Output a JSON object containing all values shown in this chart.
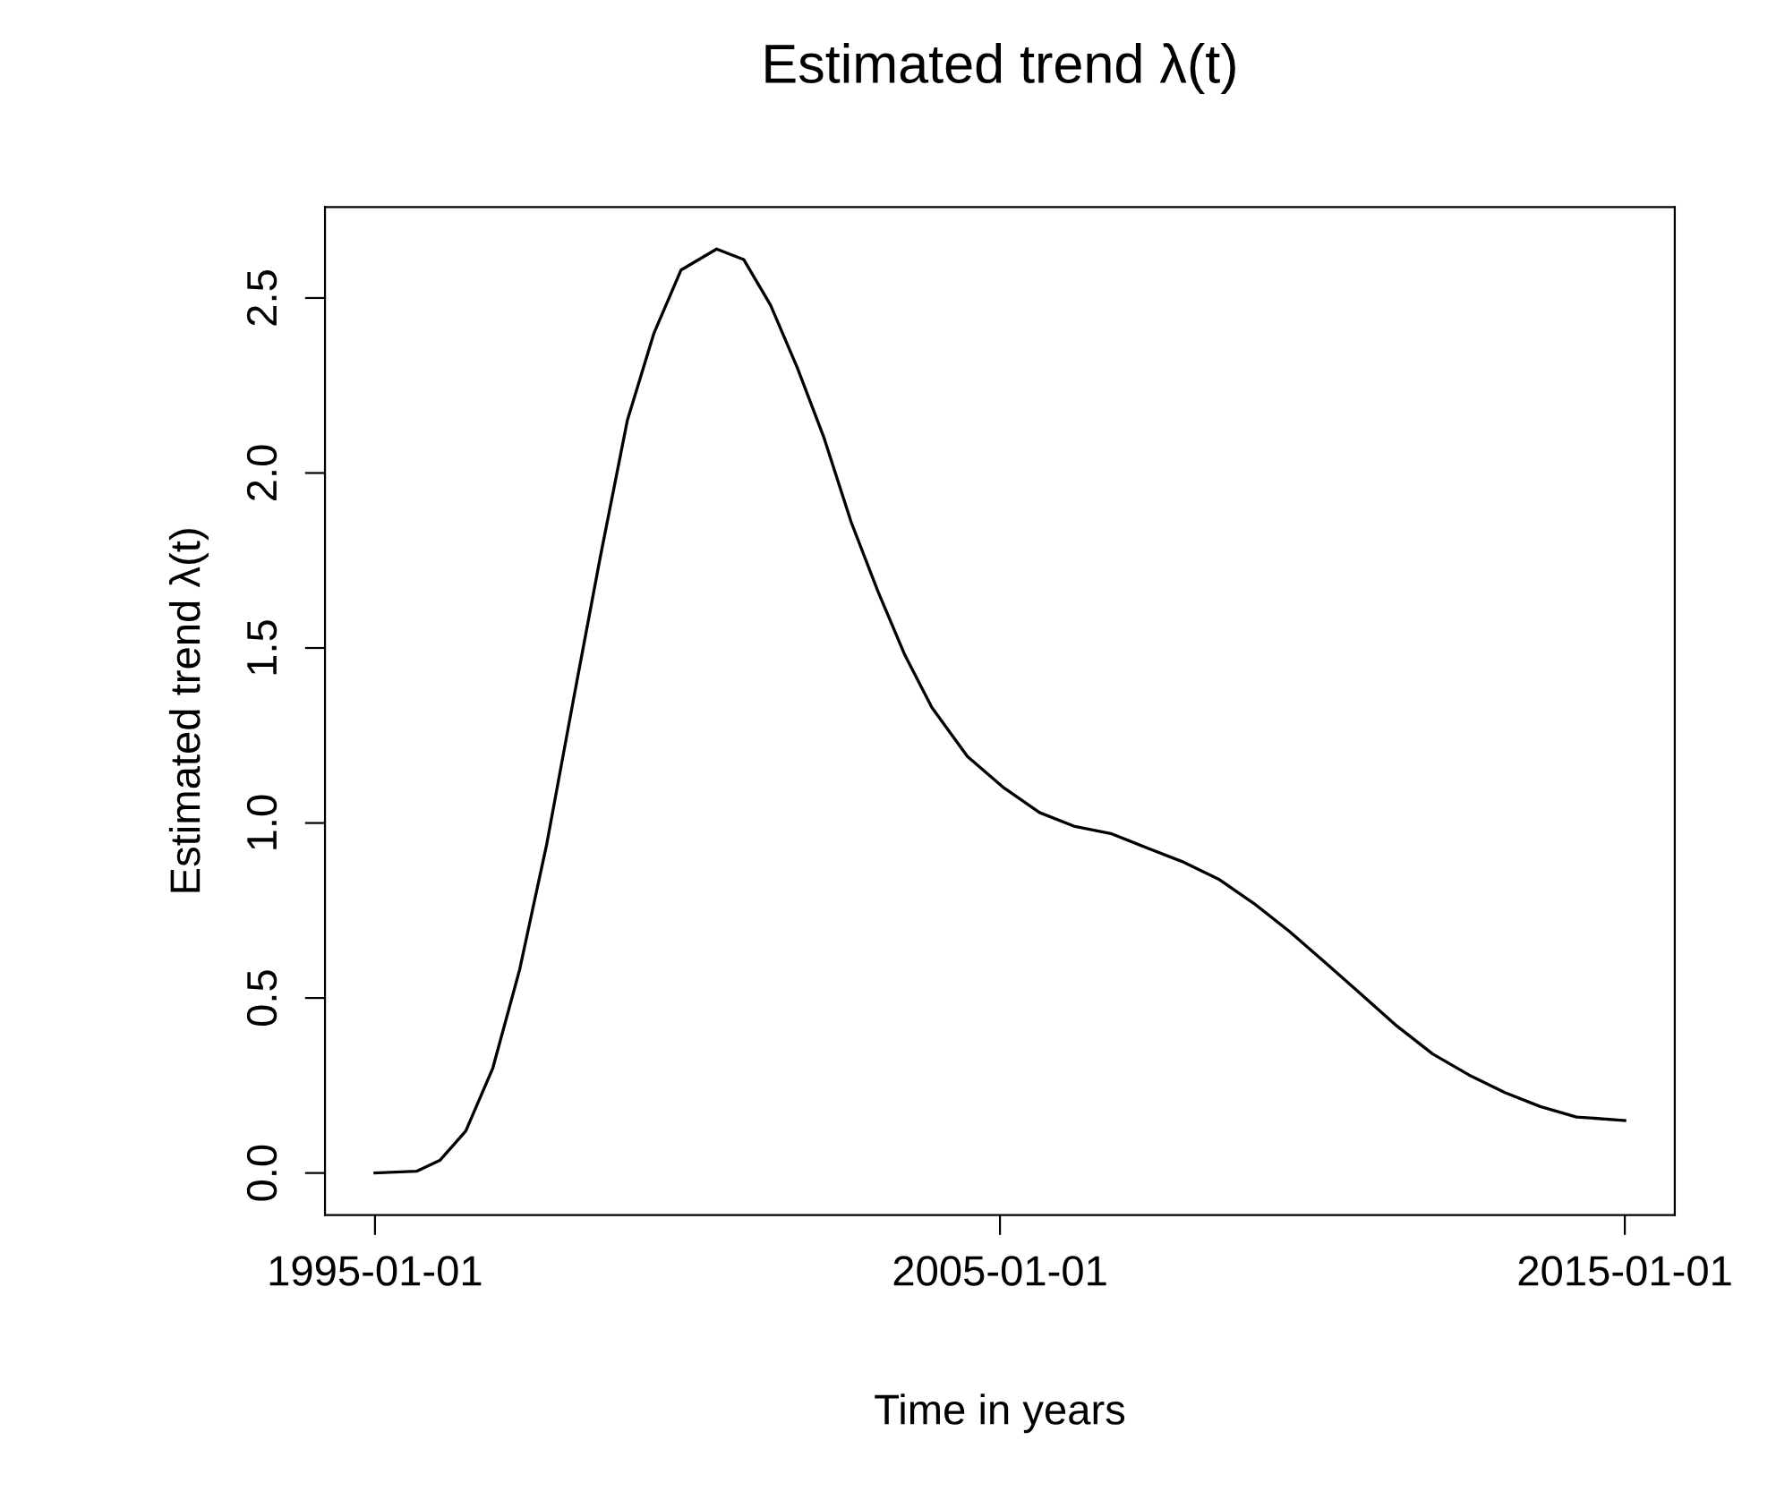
{
  "chart_data": {
    "type": "line",
    "title": "Estimated trend λ(t)",
    "xlabel": "Time in years",
    "ylabel": "Estimated trend λ(t)",
    "x": [
      "1995-01-01",
      "1995-09-01",
      "1996-01-15",
      "1996-06-15",
      "1996-11-20",
      "1997-04-25",
      "1997-10-01",
      "1998-03-05",
      "1998-08-10",
      "1999-01-15",
      "1999-06-20",
      "1999-11-25",
      "2000-06-20",
      "2000-11-25",
      "2001-05-01",
      "2001-10-05",
      "2002-03-10",
      "2002-08-15",
      "2003-01-20",
      "2003-06-25",
      "2003-11-30",
      "2004-06-25",
      "2005-01-25",
      "2005-08-20",
      "2006-03-15",
      "2006-10-10",
      "2007-05-05",
      "2007-12-01",
      "2008-07-01",
      "2009-01-25",
      "2009-08-20",
      "2010-03-20",
      "2010-10-15",
      "2011-05-10",
      "2011-12-05",
      "2012-07-05",
      "2013-01-30",
      "2013-08-25",
      "2014-03-25",
      "2015-01-01"
    ],
    "series": [
      {
        "color": "#000000",
        "values": [
          0.0,
          0.005,
          0.036,
          0.12,
          0.3,
          0.58,
          0.94,
          1.35,
          1.76,
          2.15,
          2.4,
          2.58,
          2.64,
          2.61,
          2.48,
          2.3,
          2.1,
          1.86,
          1.66,
          1.48,
          1.33,
          1.19,
          1.1,
          1.03,
          0.99,
          0.97,
          0.93,
          0.89,
          0.84,
          0.77,
          0.69,
          0.6,
          0.51,
          0.42,
          0.34,
          0.28,
          0.23,
          0.19,
          0.16,
          0.15
        ]
      }
    ],
    "xlim": [
      "1994-03-15",
      "2015-10-20"
    ],
    "xticks": [
      "1995-01-01",
      "2005-01-01",
      "2015-01-01"
    ],
    "ylim": [
      -0.12,
      2.76
    ],
    "yticks": [
      {
        "value": 0,
        "label": "0.0"
      },
      {
        "value": 0.5,
        "label": "0.5"
      },
      {
        "value": 1,
        "label": "1.0"
      },
      {
        "value": 1.5,
        "label": "1.5"
      },
      {
        "value": 2,
        "label": "2.0"
      },
      {
        "value": 2.5,
        "label": "2.5"
      }
    ],
    "grid": false,
    "legend": false,
    "marker": "none",
    "line_style": "solid"
  }
}
